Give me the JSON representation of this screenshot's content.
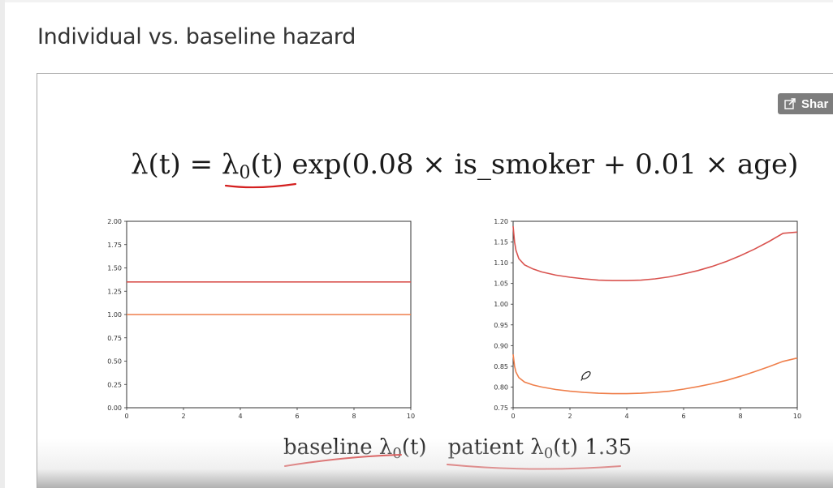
{
  "page": {
    "title": "Individual vs. baseline hazard"
  },
  "share_button": {
    "label": "Shar",
    "icon": "external-share-icon"
  },
  "formula": {
    "lhs": "λ(t)",
    "equals": "=",
    "baseline": "λ",
    "baseline_sub": "0",
    "baseline_arg": "(t)",
    "rhs": "exp(0.08 × is_smoker + 0.01 × age)"
  },
  "caption": {
    "baseline_word": "baseline",
    "baseline_lambda": "λ",
    "baseline_sub": "0",
    "baseline_arg": "(t)",
    "patient_word": "patient",
    "patient_lambda": "λ",
    "patient_sub": "0",
    "patient_arg": "(t)",
    "patient_factor": "1.35"
  },
  "colors": {
    "patient_line": "#d9534f",
    "baseline_line": "#ef7f4b",
    "annotation_ink": "#d42020"
  },
  "chart_data": [
    {
      "type": "line",
      "title": "",
      "xlabel": "",
      "ylabel": "",
      "xlim": [
        0,
        10
      ],
      "ylim": [
        0,
        2
      ],
      "x_ticks": [
        "0",
        "2",
        "4",
        "6",
        "8",
        "10"
      ],
      "y_ticks": [
        "0.00",
        "0.25",
        "0.50",
        "0.75",
        "1.00",
        "1.25",
        "1.50",
        "1.75",
        "2.00"
      ],
      "grid": false,
      "series": [
        {
          "color": "#d9534f",
          "x": [
            0,
            10
          ],
          "y": [
            1.35,
            1.35
          ]
        },
        {
          "color": "#ef7f4b",
          "x": [
            0,
            10
          ],
          "y": [
            1.0,
            1.0
          ]
        }
      ]
    },
    {
      "type": "line",
      "title": "",
      "xlabel": "",
      "ylabel": "",
      "xlim": [
        0,
        10
      ],
      "ylim": [
        0.75,
        1.2
      ],
      "x_ticks": [
        "0",
        "2",
        "4",
        "6",
        "8",
        "10"
      ],
      "y_ticks": [
        "0.75",
        "0.80",
        "0.85",
        "0.90",
        "0.95",
        "1.00",
        "1.05",
        "1.10",
        "1.15",
        "1.20"
      ],
      "grid": false,
      "series": [
        {
          "color": "#d9534f",
          "x": [
            0,
            0.05,
            0.1,
            0.2,
            0.4,
            0.7,
            1,
            1.5,
            2,
            2.5,
            3,
            3.5,
            4,
            4.5,
            5,
            5.5,
            6,
            6.5,
            7,
            7.5,
            8,
            8.5,
            9,
            9.5,
            10
          ],
          "y": [
            1.188,
            1.15,
            1.13,
            1.11,
            1.095,
            1.085,
            1.078,
            1.07,
            1.065,
            1.061,
            1.058,
            1.057,
            1.057,
            1.058,
            1.061,
            1.066,
            1.073,
            1.081,
            1.091,
            1.103,
            1.117,
            1.133,
            1.151,
            1.171,
            1.174
          ]
        },
        {
          "color": "#ef7f4b",
          "x": [
            0,
            0.05,
            0.1,
            0.2,
            0.4,
            0.7,
            1,
            1.5,
            2,
            2.5,
            3,
            3.5,
            4,
            4.5,
            5,
            5.5,
            6,
            6.5,
            7,
            7.5,
            8,
            8.5,
            9,
            9.5,
            10
          ],
          "y": [
            0.879,
            0.85,
            0.836,
            0.823,
            0.812,
            0.805,
            0.8,
            0.794,
            0.79,
            0.787,
            0.785,
            0.784,
            0.784,
            0.785,
            0.787,
            0.79,
            0.795,
            0.801,
            0.808,
            0.816,
            0.826,
            0.837,
            0.849,
            0.862,
            0.87
          ]
        }
      ]
    }
  ]
}
